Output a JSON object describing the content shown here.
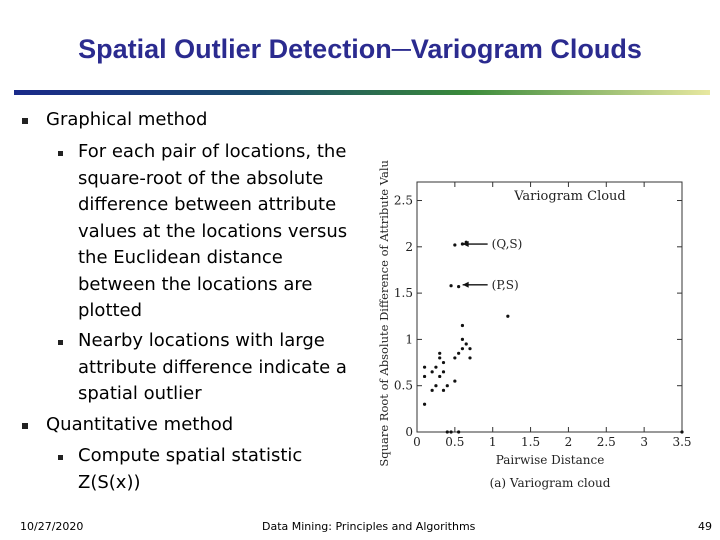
{
  "slide": {
    "title": "Spatial Outlier Detection─Variogram Clouds",
    "bullets": {
      "b1": "Graphical method",
      "b1_1": "For each pair of locations, the square-root of the absolute difference between attribute values at the locations versus the Euclidean distance between the locations are plotted",
      "b1_2": "Nearby locations with large attribute difference indicate a spatial outlier",
      "b2": "Quantitative method",
      "b2_1": "Compute spatial statistic Z(S(x))"
    },
    "footer": {
      "date": "10/27/2020",
      "center": "Data Mining: Principles and Algorithms",
      "page": "49"
    }
  },
  "chart_data": {
    "type": "scatter",
    "title": "Variogram Cloud",
    "caption": "(a) Variogram cloud",
    "xlabel": "Pairwise Distance",
    "ylabel": "Square Root of Absolute Difference of Attribute Values",
    "xlim": [
      0,
      3.5
    ],
    "ylim": [
      0,
      2.7
    ],
    "xticks": [
      "0",
      "0.5",
      "1",
      "1.5",
      "2",
      "2.5",
      "3",
      "3.5"
    ],
    "yticks": [
      "0",
      "0.5",
      "1",
      "1.5",
      "2",
      "2.5"
    ],
    "annotations": [
      {
        "label": "(Q,S)",
        "x": 0.55,
        "y": 2.03
      },
      {
        "label": "(P,S)",
        "x": 0.55,
        "y": 1.59
      }
    ],
    "points": [
      [
        0.1,
        0.3
      ],
      [
        0.1,
        0.6
      ],
      [
        0.1,
        0.7
      ],
      [
        0.2,
        0.45
      ],
      [
        0.2,
        0.65
      ],
      [
        0.25,
        0.5
      ],
      [
        0.25,
        0.7
      ],
      [
        0.3,
        0.6
      ],
      [
        0.3,
        0.8
      ],
      [
        0.3,
        0.85
      ],
      [
        0.35,
        0.45
      ],
      [
        0.35,
        0.65
      ],
      [
        0.35,
        0.75
      ],
      [
        0.4,
        0.5
      ],
      [
        0.4,
        0.0
      ],
      [
        0.45,
        0.0
      ],
      [
        0.5,
        0.55
      ],
      [
        0.5,
        0.8
      ],
      [
        0.55,
        0.85
      ],
      [
        0.6,
        0.9
      ],
      [
        0.6,
        1.0
      ],
      [
        0.6,
        1.15
      ],
      [
        0.65,
        0.95
      ],
      [
        0.7,
        0.8
      ],
      [
        0.7,
        0.9
      ],
      [
        0.45,
        1.58
      ],
      [
        0.55,
        1.57
      ],
      [
        0.5,
        2.02
      ],
      [
        0.6,
        2.03
      ],
      [
        0.65,
        2.05
      ],
      [
        0.55,
        0.0
      ],
      [
        1.2,
        1.25
      ],
      [
        3.5,
        0.0
      ]
    ]
  }
}
